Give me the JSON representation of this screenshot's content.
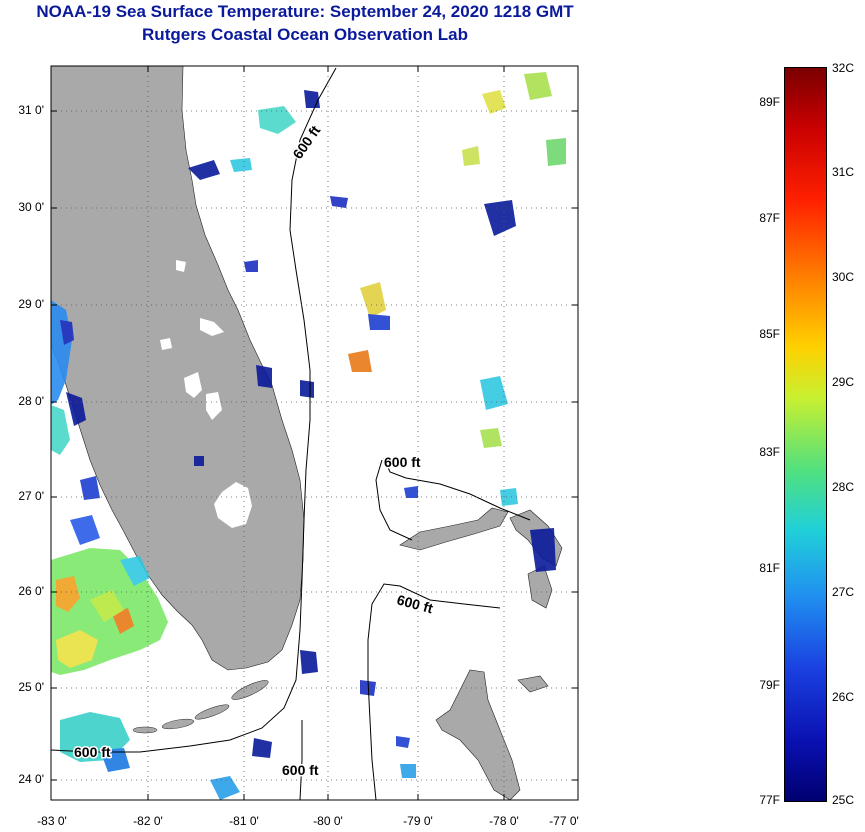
{
  "header": {
    "title": "NOAA-19 Sea Surface Temperature:  September 24, 2020 1218 GMT",
    "subtitle": "Rutgers Coastal Ocean Observation Lab"
  },
  "map": {
    "y_axis_labels": [
      "31 0'",
      "30 0'",
      "29 0'",
      "28 0'",
      "27 0'",
      "26 0'",
      "25 0'",
      "24 0'"
    ],
    "x_axis_labels": [
      "-83 0'",
      "-82 0'",
      "-81 0'",
      "-80 0'",
      "-79 0'",
      "-78 0'",
      "-77 0'"
    ],
    "lat_range": [
      23.85,
      31.4
    ],
    "lon_range": [
      -83,
      -76.7
    ],
    "contour_labels": [
      "600 ft",
      "600 ft",
      "600 ft",
      "600 ft",
      "600 ft"
    ],
    "land_color": "#a9a9a9"
  },
  "colorbar": {
    "fahrenheit_labels": [
      "89F",
      "87F",
      "85F",
      "83F",
      "81F",
      "79F",
      "77F"
    ],
    "celsius_labels": [
      "32C",
      "31C",
      "30C",
      "29C",
      "28C",
      "27C",
      "26C",
      "25C"
    ],
    "range_c": [
      25,
      32
    ]
  }
}
